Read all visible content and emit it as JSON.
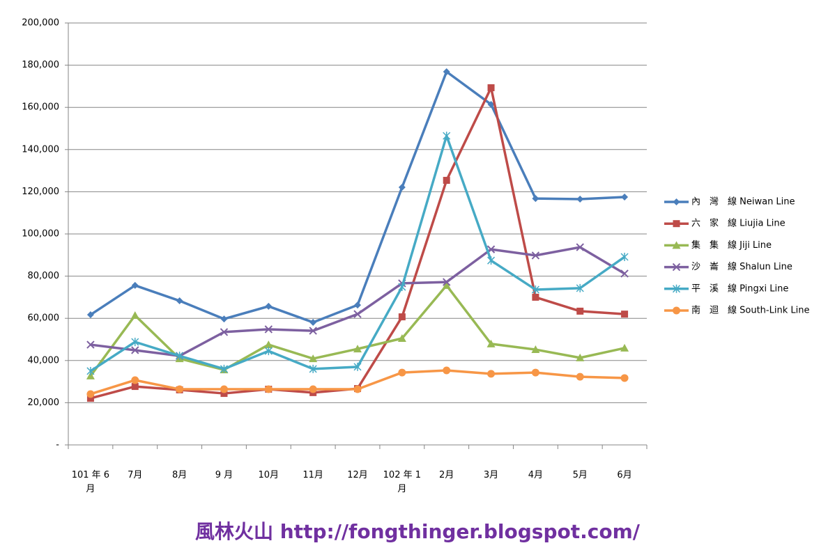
{
  "chart_data": {
    "type": "line",
    "categories": [
      "101 年 6 月",
      "7月",
      "8月",
      "9 月",
      "10月",
      "11月",
      "12月",
      "102 年 1 月",
      "2月",
      "3月",
      "4月",
      "5月",
      "6月"
    ],
    "series": [
      {
        "name": "內　灣　線 Neiwan Line",
        "color": "#4a7ebb",
        "marker": "diamond",
        "values": [
          61700,
          75600,
          68300,
          59700,
          65700,
          58100,
          66300,
          122100,
          176900,
          161400,
          116800,
          116500,
          117500
        ]
      },
      {
        "name": "六　家　線 Liujia Line",
        "color": "#be4b48",
        "marker": "square",
        "values": [
          22100,
          27700,
          26100,
          24400,
          26400,
          24800,
          26700,
          60700,
          125400,
          169300,
          70000,
          63400,
          62000
        ]
      },
      {
        "name": "集　集　線 Jiji Line",
        "color": "#98b954",
        "marker": "triangle",
        "values": [
          32700,
          61400,
          40900,
          35600,
          47500,
          40900,
          45500,
          50500,
          75600,
          47900,
          45200,
          41300,
          45900
        ]
      },
      {
        "name": "沙　崙　線 Shalun Line",
        "color": "#7d60a0",
        "marker": "x",
        "values": [
          47500,
          44900,
          42200,
          53500,
          54800,
          54100,
          62000,
          76600,
          77200,
          92700,
          89800,
          93700,
          81200
        ]
      },
      {
        "name": "平　溪　線 Pingxi Line",
        "color": "#46aac5",
        "marker": "star",
        "values": [
          35000,
          48800,
          42200,
          36000,
          44500,
          36000,
          37000,
          74900,
          146500,
          87400,
          73600,
          74300,
          89100
        ]
      },
      {
        "name": "南　迴　線 South-Link Line",
        "color": "#f79646",
        "marker": "circle",
        "values": [
          24100,
          30700,
          26400,
          26400,
          26400,
          26400,
          26400,
          34300,
          35300,
          33700,
          34300,
          32300,
          31700
        ]
      }
    ],
    "ylim": [
      0,
      200000
    ],
    "yticks": [
      {
        "value": 0,
        "label": "-"
      },
      {
        "value": 20000,
        "label": "20,000"
      },
      {
        "value": 40000,
        "label": "40,000"
      },
      {
        "value": 60000,
        "label": "60,000"
      },
      {
        "value": 80000,
        "label": "80,000"
      },
      {
        "value": 100000,
        "label": "100,000"
      },
      {
        "value": 120000,
        "label": "120,000"
      },
      {
        "value": 140000,
        "label": "140,000"
      },
      {
        "value": 160000,
        "label": "160,000"
      },
      {
        "value": 180000,
        "label": "180,000"
      },
      {
        "value": 200000,
        "label": "200,000"
      }
    ],
    "grid": true,
    "legend": "right",
    "source": "風林火山 http://fongthinger.blogspot.com/"
  }
}
